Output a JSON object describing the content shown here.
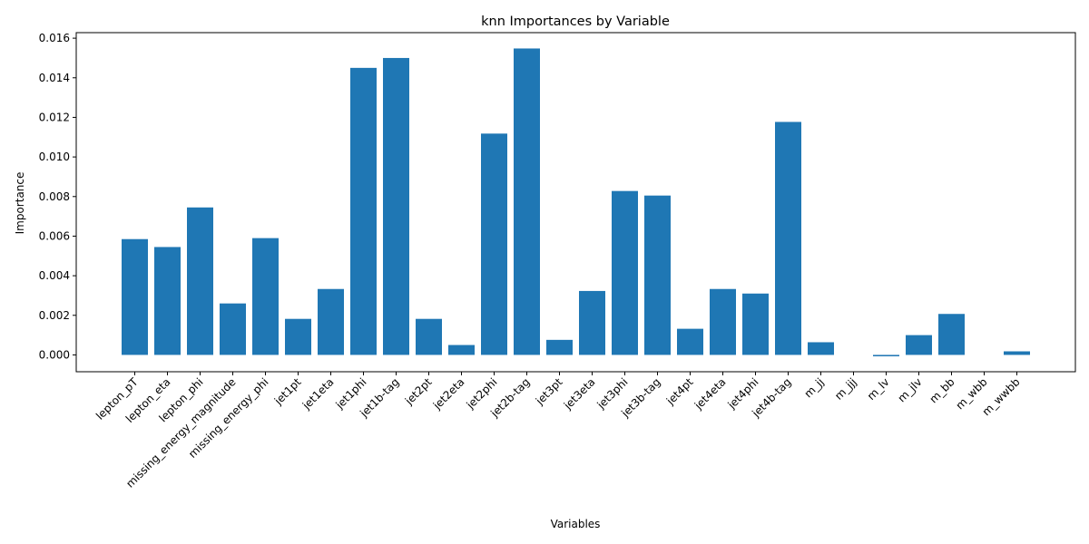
{
  "chart_data": {
    "type": "bar",
    "title": "knn Importances by Variable",
    "xlabel": "Variables",
    "ylabel": "Importance",
    "ylim": [
      -0.00085,
      0.01628
    ],
    "yticks": [
      0.0,
      0.002,
      0.004,
      0.006,
      0.008,
      0.01,
      0.012,
      0.014,
      0.016
    ],
    "ytick_labels": [
      "0.000",
      "0.002",
      "0.004",
      "0.006",
      "0.008",
      "0.010",
      "0.012",
      "0.014",
      "0.016"
    ],
    "grid": false,
    "bar_color": "#1f77b4",
    "categories": [
      "lepton_pT",
      "lepton_eta",
      "lepton_phi",
      "missing_energy_magnitude",
      "missing_energy_phi",
      "jet1pt",
      "jet1eta",
      "jet1phi",
      "jet1b-tag",
      "jet2pt",
      "jet2eta",
      "jet2phi",
      "jet2b-tag",
      "jet3pt",
      "jet3eta",
      "jet3phi",
      "jet3b-tag",
      "jet4pt",
      "jet4eta",
      "jet4phi",
      "jet4b-tag",
      "m_jj",
      "m_jjj",
      "m_lv",
      "m_jlv",
      "m_bb",
      "m_wbb",
      "m_wwbb"
    ],
    "values": [
      0.00585,
      0.00545,
      0.00745,
      0.0026,
      0.0059,
      0.00182,
      0.00333,
      0.0145,
      0.015,
      0.00182,
      0.0005,
      0.01118,
      0.01548,
      0.00076,
      0.00323,
      0.00828,
      0.00805,
      0.00132,
      0.00333,
      0.0031,
      0.01177,
      0.00064,
      0.0,
      -7e-05,
      0.001,
      0.00207,
      0.0,
      0.00018
    ]
  }
}
